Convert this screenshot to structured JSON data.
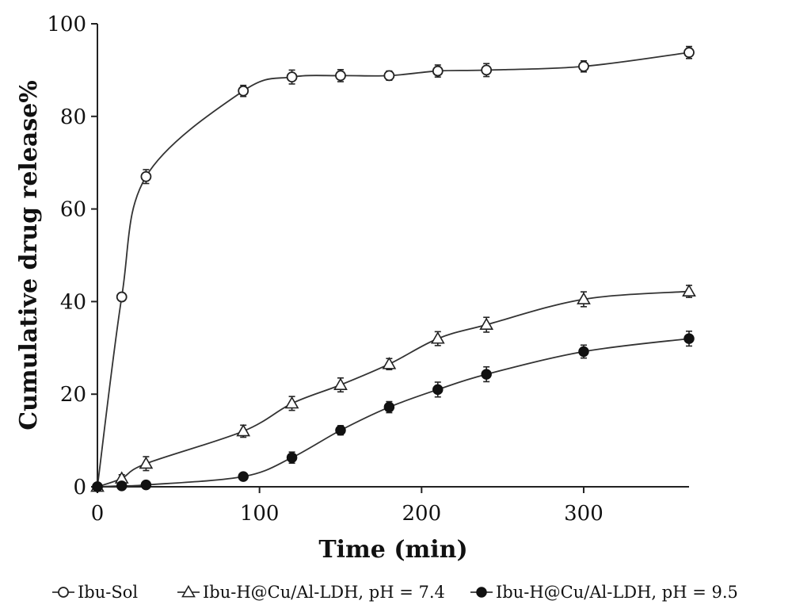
{
  "chart_data": {
    "type": "line",
    "xlabel": "Time (min)",
    "ylabel": "Cumulative drug release%",
    "xlim": [
      0,
      365
    ],
    "ylim": [
      0,
      100
    ],
    "xticks": [
      0,
      100,
      200,
      300
    ],
    "yticks": [
      0,
      20,
      40,
      60,
      80,
      100
    ],
    "grid": false,
    "legend_position": "bottom",
    "series": [
      {
        "name": "Ibu-Sol",
        "marker": "open-circle",
        "x": [
          0,
          15,
          30,
          90,
          120,
          150,
          180,
          210,
          240,
          300,
          365
        ],
        "y": [
          0,
          41,
          67,
          85.5,
          88.5,
          88.8,
          88.8,
          89.8,
          90,
          90.8,
          93.8
        ],
        "err": [
          0,
          0,
          1.5,
          1.2,
          1.5,
          1.3,
          1,
          1.3,
          1.4,
          1.2,
          1.3
        ]
      },
      {
        "name": "Ibu-H@Cu/Al-LDH, pH = 7.4",
        "marker": "open-triangle",
        "x": [
          0,
          15,
          30,
          90,
          120,
          150,
          180,
          210,
          240,
          300,
          365
        ],
        "y": [
          0,
          1.8,
          5,
          12,
          18,
          22,
          26.5,
          32,
          35,
          40.5,
          42.2
        ],
        "err": [
          0,
          0.8,
          1.5,
          1.3,
          1.5,
          1.5,
          1.2,
          1.5,
          1.6,
          1.6,
          1.3
        ]
      },
      {
        "name": "Ibu-H@Cu/Al-LDH, pH = 9.5",
        "marker": "filled-circle",
        "x": [
          0,
          15,
          30,
          90,
          120,
          150,
          180,
          210,
          240,
          300,
          365
        ],
        "y": [
          0,
          0.2,
          0.4,
          2.2,
          6.3,
          12.2,
          17.2,
          21,
          24.3,
          29.2,
          32
        ],
        "err": [
          0,
          0,
          0,
          0.6,
          1.2,
          1.0,
          1.2,
          1.6,
          1.6,
          1.4,
          1.6
        ]
      }
    ]
  }
}
